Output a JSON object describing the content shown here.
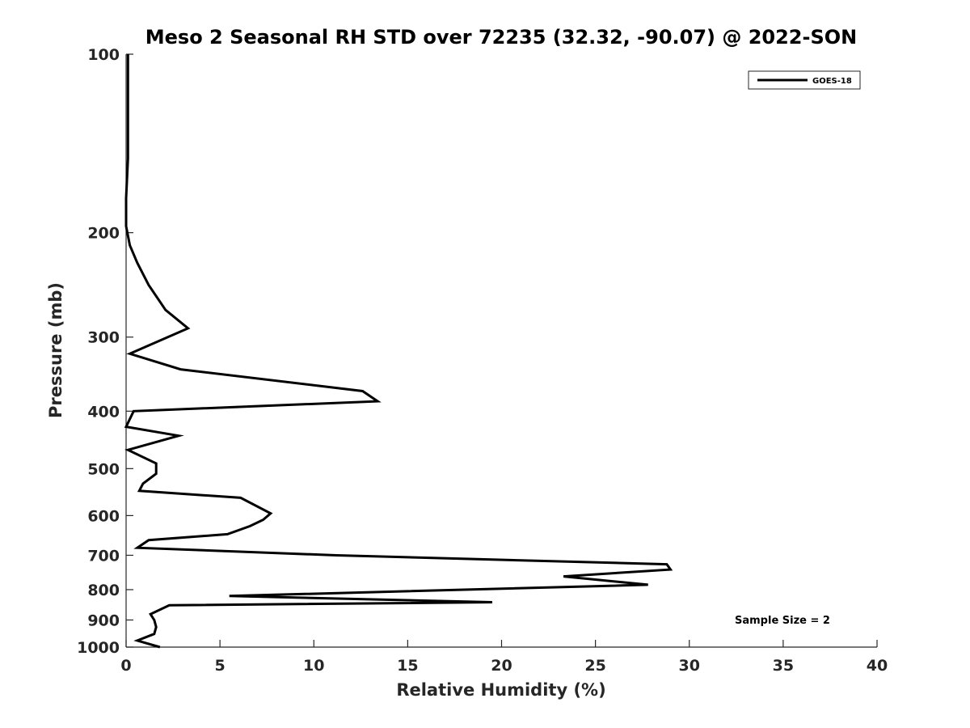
{
  "chart_data": {
    "type": "line",
    "title": "Meso 2 Seasonal RH STD over 72235 (32.32, -90.07) @ 2022-SON",
    "xlabel": "Relative Humidity (%)",
    "ylabel": "Pressure (mb)",
    "xlim": [
      0,
      40
    ],
    "ylim": [
      100,
      1000
    ],
    "yscale": "log",
    "yreversed": true,
    "xticks": [
      0,
      5,
      10,
      15,
      20,
      25,
      30,
      35,
      40
    ],
    "yticks": [
      100,
      200,
      300,
      400,
      500,
      600,
      700,
      800,
      900,
      1000
    ],
    "grid": false,
    "legend_position": "top-right",
    "annotation": "Sample Size = 2",
    "series": [
      {
        "name": "GOES-18",
        "color": "#000000",
        "x": [
          1.8,
          0.6,
          1.5,
          1.6,
          1.5,
          1.3,
          2.3,
          19.5,
          5.5,
          27.8,
          23.3,
          29.0,
          28.8,
          11.2,
          0.6,
          1.2,
          5.4,
          6.6,
          7.3,
          7.7,
          6.1,
          0.7,
          0.9,
          1.6,
          1.6,
          0.1,
          2.8,
          0.0,
          0.4,
          13.4,
          12.6,
          2.9,
          0.2,
          3.3,
          2.1,
          1.2,
          0.6,
          0.2,
          0.0,
          0.0,
          0.1,
          0.1,
          0.1,
          0.1
        ],
        "y": [
          1000,
          975,
          950,
          925,
          900,
          880,
          850,
          840,
          820,
          785,
          760,
          740,
          725,
          700,
          680,
          660,
          645,
          625,
          610,
          595,
          560,
          545,
          530,
          510,
          490,
          465,
          440,
          425,
          400,
          385,
          370,
          340,
          320,
          290,
          270,
          245,
          225,
          210,
          195,
          175,
          150,
          130,
          115,
          100
        ]
      }
    ]
  }
}
